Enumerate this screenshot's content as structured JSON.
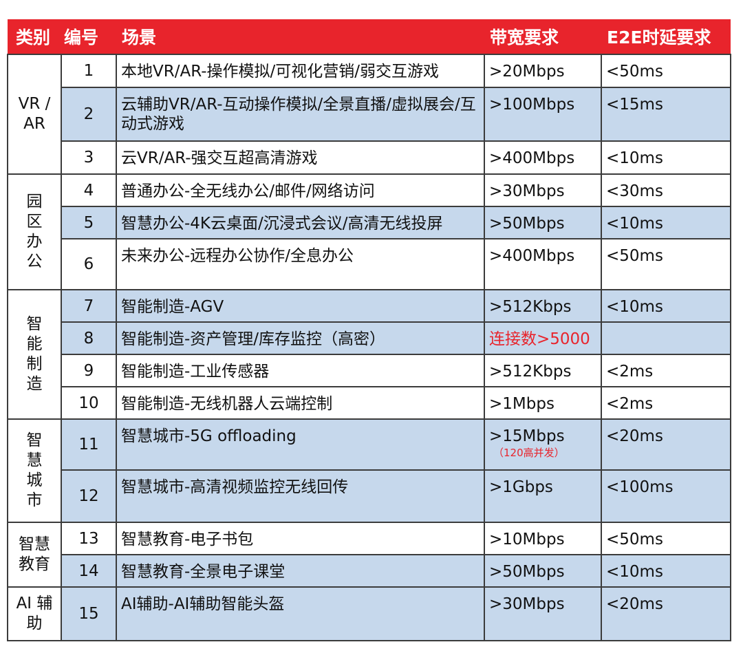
{
  "header": {
    "category": "类别",
    "number": "编号",
    "scenario": "场景",
    "bandwidth": "带宽要求",
    "latency": "E2E时延要求"
  },
  "groups": [
    {
      "label": "VR /AR"
    },
    {
      "label": "园区办公"
    },
    {
      "label": "智能制造"
    },
    {
      "label": "智慧城市"
    },
    {
      "label": "智慧教育"
    },
    {
      "label": "AI 辅助"
    }
  ],
  "rows": [
    {
      "num": "1",
      "scenario": "本地VR/AR-操作模拟/可视化营销/弱交互游戏",
      "bandwidth": ">20Mbps",
      "latency": "<50ms"
    },
    {
      "num": "2",
      "scenario": "云辅助VR/AR-互动操作模拟/全景直播/虚拟展会/互动式游戏",
      "bandwidth": ">100Mbps",
      "latency": "<15ms"
    },
    {
      "num": "3",
      "scenario": "云VR/AR-强交互超高清游戏",
      "bandwidth": ">400Mbps",
      "latency": "<10ms"
    },
    {
      "num": "4",
      "scenario": "普通办公-全无线办公/邮件/网络访问",
      "bandwidth": ">30Mbps",
      "latency": "<30ms"
    },
    {
      "num": "5",
      "scenario": "智慧办公-4K云桌面/沉浸式会议/高清无线投屏",
      "bandwidth": ">50Mbps",
      "latency": "<10ms"
    },
    {
      "num": "6",
      "scenario": "未来办公-远程办公协作/全息办公",
      "bandwidth": ">400Mbps",
      "latency": "<50ms"
    },
    {
      "num": "7",
      "scenario": "智能制造-AGV",
      "bandwidth": ">512Kbps",
      "latency": "<10ms"
    },
    {
      "num": "8",
      "scenario": "智能制造-资产管理/库存监控（高密）",
      "bandwidth": "连接数>5000",
      "latency": ""
    },
    {
      "num": "9",
      "scenario": "智能制造-工业传感器",
      "bandwidth": ">512Kbps",
      "latency": "<2ms"
    },
    {
      "num": "10",
      "scenario": "智能制造-无线机器人云端控制",
      "bandwidth": ">1Mbps",
      "latency": "<2ms"
    },
    {
      "num": "11",
      "scenario": "智慧城市-5G offloading",
      "bandwidth": ">15Mbps",
      "bandwidth_note": "（120高并发）",
      "latency": "<20ms"
    },
    {
      "num": "12",
      "scenario": "智慧城市-高清视频监控无线回传",
      "bandwidth": ">1Gbps",
      "latency": "<100ms"
    },
    {
      "num": "13",
      "scenario": "智慧教育-电子书包",
      "bandwidth": ">10Mbps",
      "latency": "<50ms"
    },
    {
      "num": "14",
      "scenario": "智慧教育-全景电子课堂",
      "bandwidth": ">50Mbps",
      "latency": "<10ms"
    },
    {
      "num": "15",
      "scenario": "AI辅助-AI辅助智能头盔",
      "bandwidth": ">30Mbps",
      "latency": "<20ms"
    }
  ],
  "colors": {
    "header_bg": "#e8242c",
    "row_blue": "#c6d8ec",
    "highlight_text": "#e8242c"
  }
}
